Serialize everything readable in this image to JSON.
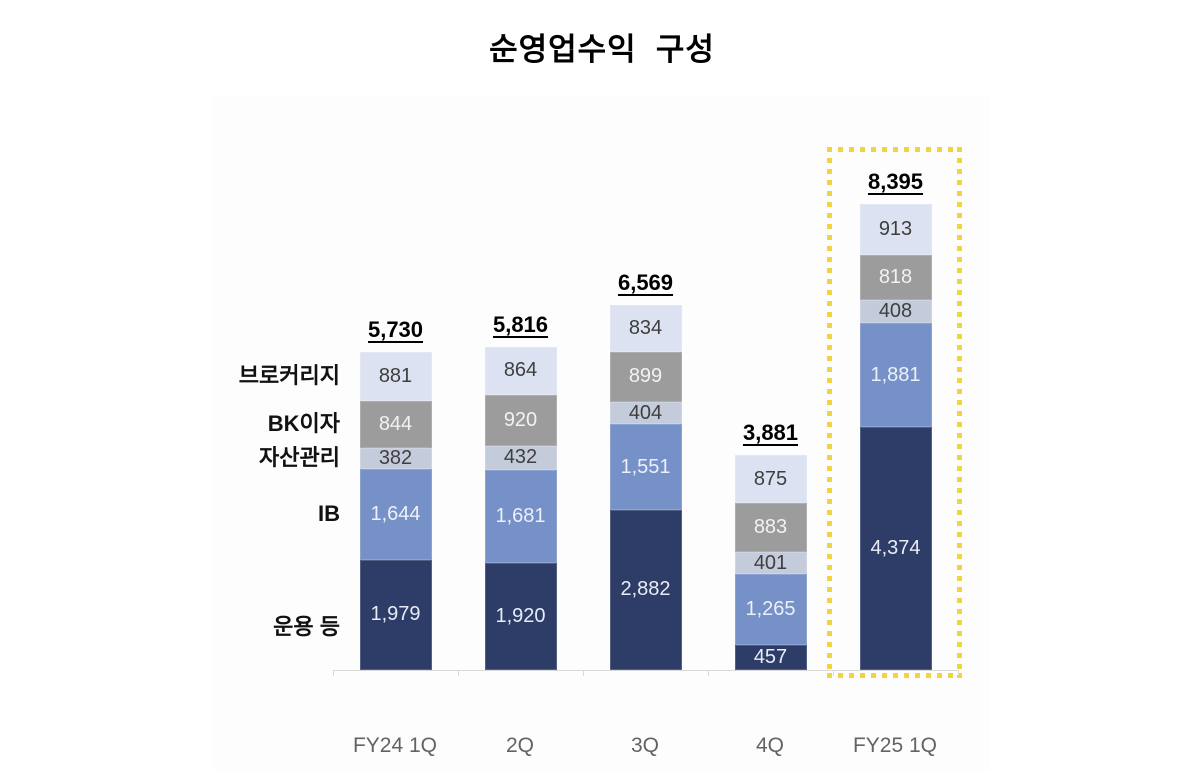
{
  "title": "순영업수익  구성",
  "category_labels": [
    "브로커리지",
    "BK이자",
    "자산관리",
    "IB",
    "운용 등"
  ],
  "chart_data": {
    "type": "bar",
    "stacked": true,
    "title": "순영업수익  구성",
    "categories": [
      "FY24 1Q",
      "2Q",
      "3Q",
      "4Q",
      "FY25 1Q"
    ],
    "series": [
      {
        "name": "운용 등",
        "color": "#2e3c68",
        "label_color": "#e9ecf5",
        "values": [
          1979,
          1920,
          2882,
          457,
          4374
        ]
      },
      {
        "name": "IB",
        "color": "#7591c8",
        "label_color": "#edf0f8",
        "values": [
          1644,
          1681,
          1551,
          1265,
          1881
        ]
      },
      {
        "name": "자산관리",
        "color": "#c4cbdb",
        "label_color": "#3f3f3f",
        "values": [
          382,
          432,
          404,
          401,
          408
        ]
      },
      {
        "name": "BK이자",
        "color": "#9c9c9c",
        "label_color": "#f2f2f2",
        "values": [
          844,
          920,
          899,
          883,
          818
        ]
      },
      {
        "name": "브로커리지",
        "color": "#dce2f1",
        "label_color": "#3f3f3f",
        "values": [
          881,
          864,
          834,
          875,
          913
        ]
      }
    ],
    "totals": [
      5730,
      5816,
      6569,
      3881,
      8395
    ],
    "value_format": "thousands-comma",
    "highlight": {
      "category": "FY25 1Q",
      "style": "dotted-rectangle",
      "box_color": "#f0d53c"
    },
    "axis_color": "#d9d9d9",
    "x_label_color": "#636363",
    "grid": false,
    "legend_position": "left-category-labels"
  }
}
